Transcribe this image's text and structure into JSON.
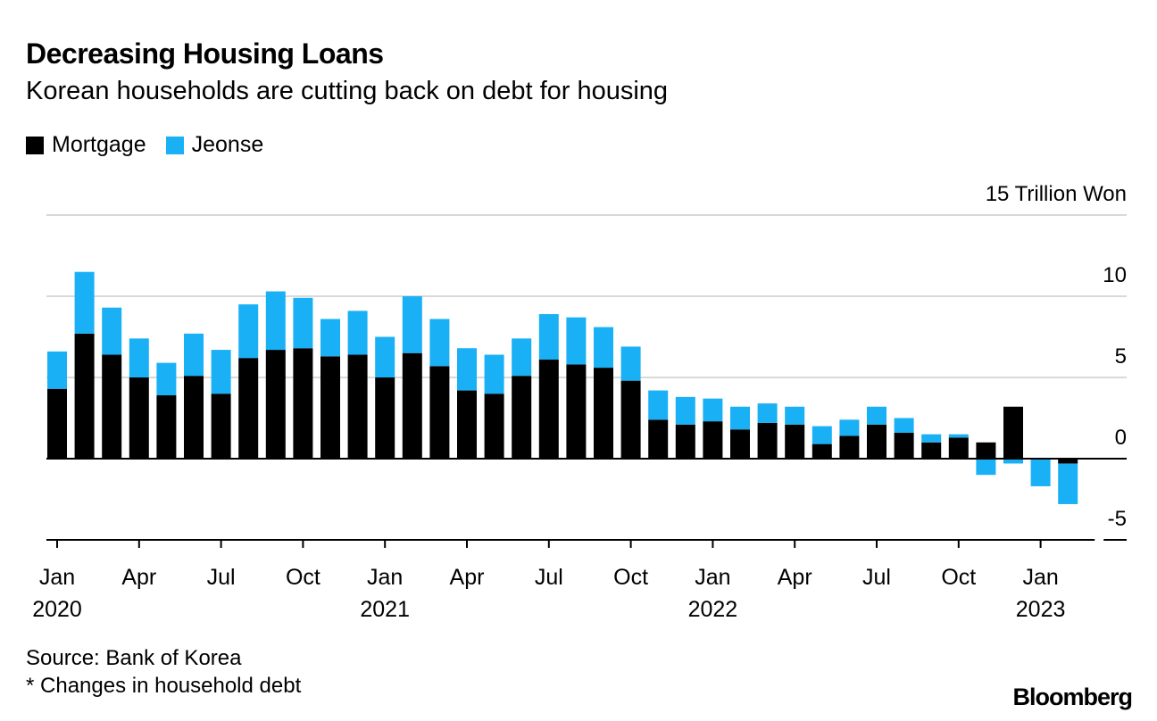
{
  "header": {
    "title": "Decreasing Housing Loans",
    "subtitle": "Korean households are cutting back on debt for housing"
  },
  "legend": [
    {
      "label": "Mortgage",
      "color": "#000000"
    },
    {
      "label": "Jeonse",
      "color": "#1ab0f5"
    }
  ],
  "footer": {
    "source": "Source: Bank of Korea",
    "note": "* Changes in household debt",
    "brand": "Bloomberg"
  },
  "chart_data": {
    "type": "bar",
    "stacked": true,
    "unit_label": "15 Trillion Won",
    "ylim": [
      -5,
      15
    ],
    "yticks": [
      -5,
      0,
      5,
      10
    ],
    "grid": true,
    "legend_position": "top-left",
    "categories": [
      "Jan 2020",
      "Feb 2020",
      "Mar 2020",
      "Apr 2020",
      "May 2020",
      "Jun 2020",
      "Jul 2020",
      "Aug 2020",
      "Sep 2020",
      "Oct 2020",
      "Nov 2020",
      "Dec 2020",
      "Jan 2021",
      "Feb 2021",
      "Mar 2021",
      "Apr 2021",
      "May 2021",
      "Jun 2021",
      "Jul 2021",
      "Aug 2021",
      "Sep 2021",
      "Oct 2021",
      "Nov 2021",
      "Dec 2021",
      "Jan 2022",
      "Feb 2022",
      "Mar 2022",
      "Apr 2022",
      "May 2022",
      "Jun 2022",
      "Jul 2022",
      "Aug 2022",
      "Sep 2022",
      "Oct 2022",
      "Nov 2022",
      "Dec 2022",
      "Jan 2023",
      "Feb 2023"
    ],
    "x_tick_labels": [
      {
        "index": 0,
        "month": "Jan",
        "year": "2020"
      },
      {
        "index": 3,
        "month": "Apr",
        "year": ""
      },
      {
        "index": 6,
        "month": "Jul",
        "year": ""
      },
      {
        "index": 9,
        "month": "Oct",
        "year": ""
      },
      {
        "index": 12,
        "month": "Jan",
        "year": "2021"
      },
      {
        "index": 15,
        "month": "Apr",
        "year": ""
      },
      {
        "index": 18,
        "month": "Jul",
        "year": ""
      },
      {
        "index": 21,
        "month": "Oct",
        "year": ""
      },
      {
        "index": 24,
        "month": "Jan",
        "year": "2022"
      },
      {
        "index": 27,
        "month": "Apr",
        "year": ""
      },
      {
        "index": 30,
        "month": "Jul",
        "year": ""
      },
      {
        "index": 33,
        "month": "Oct",
        "year": ""
      },
      {
        "index": 36,
        "month": "Jan",
        "year": "2023"
      }
    ],
    "series": [
      {
        "name": "Mortgage",
        "color": "#000000",
        "values": [
          4.3,
          7.7,
          6.4,
          5.0,
          3.9,
          5.1,
          4.0,
          6.2,
          6.7,
          6.8,
          6.3,
          6.4,
          5.0,
          6.5,
          5.7,
          4.2,
          4.0,
          5.1,
          6.1,
          5.8,
          5.6,
          4.8,
          2.4,
          2.1,
          2.3,
          1.8,
          2.2,
          2.1,
          0.9,
          1.4,
          2.1,
          1.6,
          1.0,
          1.3,
          1.0,
          3.2,
          0.0,
          -0.3
        ]
      },
      {
        "name": "Jeonse",
        "color": "#1ab0f5",
        "values": [
          2.3,
          3.8,
          2.9,
          2.4,
          2.0,
          2.6,
          2.7,
          3.3,
          3.6,
          3.1,
          2.3,
          2.7,
          2.5,
          3.5,
          2.9,
          2.6,
          2.4,
          2.3,
          2.8,
          2.9,
          2.5,
          2.1,
          1.8,
          1.7,
          1.4,
          1.4,
          1.2,
          1.1,
          1.1,
          1.0,
          1.1,
          0.9,
          0.5,
          0.2,
          -1.0,
          -0.3,
          -1.7,
          -2.5
        ]
      }
    ]
  }
}
